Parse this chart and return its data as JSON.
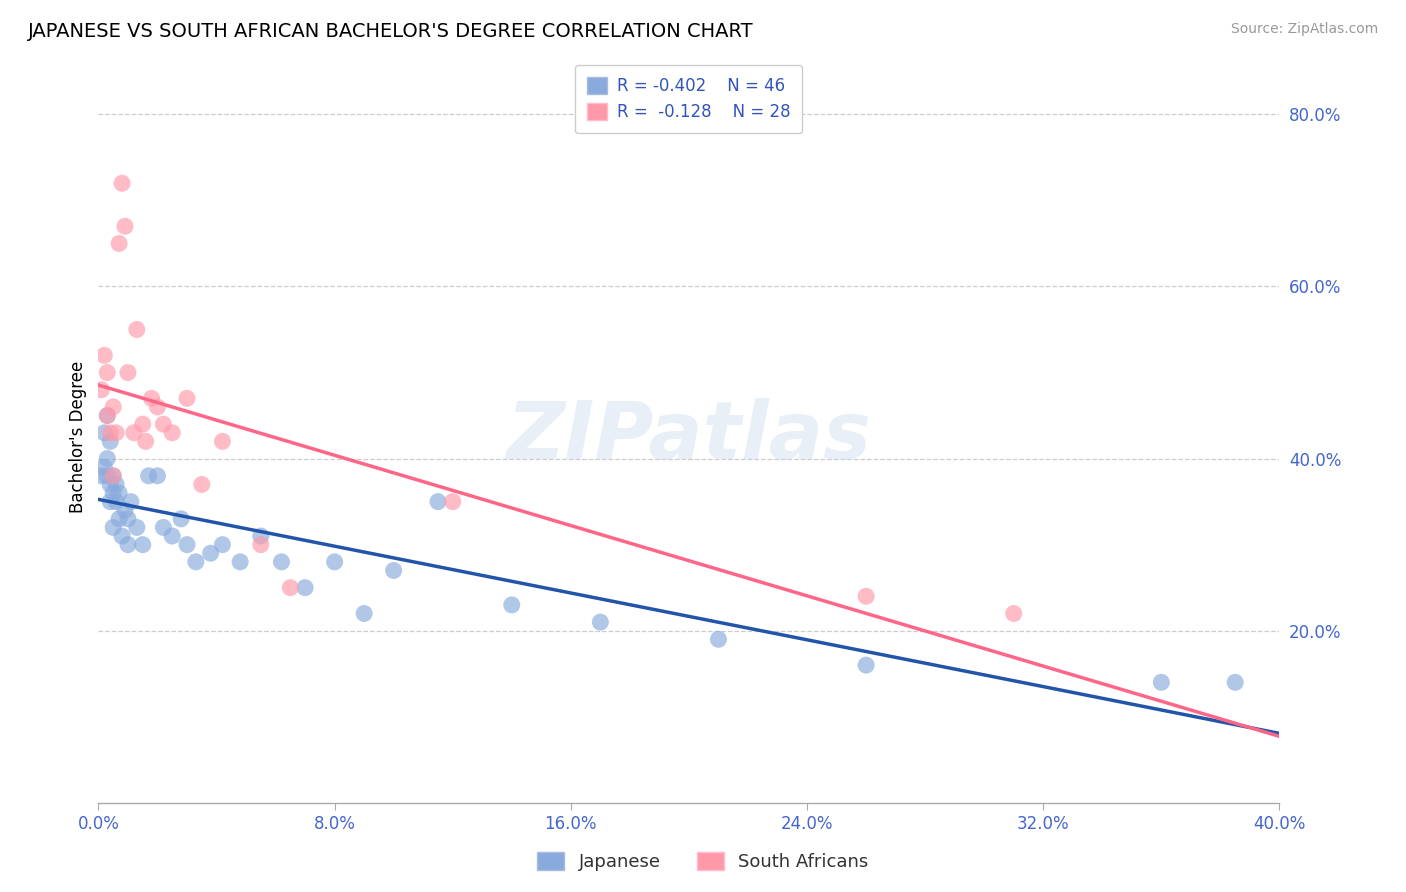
{
  "title": "JAPANESE VS SOUTH AFRICAN BACHELOR'S DEGREE CORRELATION CHART",
  "source": "Source: ZipAtlas.com",
  "ylabel": "Bachelor's Degree",
  "blue_color": "#88AADD",
  "pink_color": "#FF99AA",
  "blue_line_color": "#2255AA",
  "pink_line_color": "#FF6688",
  "xlim": [
    0.0,
    0.4
  ],
  "ylim": [
    0.0,
    0.85
  ],
  "japanese_x": [
    0.001,
    0.002,
    0.002,
    0.003,
    0.003,
    0.003,
    0.004,
    0.004,
    0.004,
    0.005,
    0.005,
    0.005,
    0.006,
    0.006,
    0.007,
    0.007,
    0.008,
    0.009,
    0.01,
    0.01,
    0.011,
    0.013,
    0.015,
    0.017,
    0.02,
    0.022,
    0.025,
    0.028,
    0.03,
    0.033,
    0.038,
    0.042,
    0.048,
    0.055,
    0.062,
    0.07,
    0.08,
    0.09,
    0.1,
    0.115,
    0.14,
    0.17,
    0.21,
    0.26,
    0.36,
    0.385
  ],
  "japanese_y": [
    0.38,
    0.43,
    0.39,
    0.45,
    0.4,
    0.38,
    0.42,
    0.37,
    0.35,
    0.38,
    0.36,
    0.32,
    0.35,
    0.37,
    0.33,
    0.36,
    0.31,
    0.34,
    0.33,
    0.3,
    0.35,
    0.32,
    0.3,
    0.38,
    0.38,
    0.32,
    0.31,
    0.33,
    0.3,
    0.28,
    0.29,
    0.3,
    0.28,
    0.31,
    0.28,
    0.25,
    0.28,
    0.22,
    0.27,
    0.35,
    0.23,
    0.21,
    0.19,
    0.16,
    0.14,
    0.14
  ],
  "southafrican_x": [
    0.001,
    0.002,
    0.003,
    0.003,
    0.004,
    0.005,
    0.005,
    0.006,
    0.007,
    0.008,
    0.009,
    0.01,
    0.012,
    0.013,
    0.015,
    0.016,
    0.018,
    0.02,
    0.022,
    0.025,
    0.03,
    0.035,
    0.042,
    0.055,
    0.065,
    0.12,
    0.26,
    0.31
  ],
  "southafrican_y": [
    0.48,
    0.52,
    0.45,
    0.5,
    0.43,
    0.46,
    0.38,
    0.43,
    0.65,
    0.72,
    0.67,
    0.5,
    0.43,
    0.55,
    0.44,
    0.42,
    0.47,
    0.46,
    0.44,
    0.43,
    0.47,
    0.37,
    0.42,
    0.3,
    0.25,
    0.35,
    0.24,
    0.22
  ],
  "legend_r1": "-0.402",
  "legend_n1": "46",
  "legend_r2": "-0.128",
  "legend_n2": "28",
  "ytick_vals": [
    0.2,
    0.4,
    0.6,
    0.8
  ],
  "ytick_labels": [
    "20.0%",
    "40.0%",
    "60.0%",
    "80.0%"
  ],
  "xtick_vals": [
    0.0,
    0.08,
    0.16,
    0.24,
    0.32,
    0.4
  ],
  "xtick_labels": [
    "0.0%",
    "8.0%",
    "16.0%",
    "24.0%",
    "32.0%",
    "40.0%"
  ]
}
